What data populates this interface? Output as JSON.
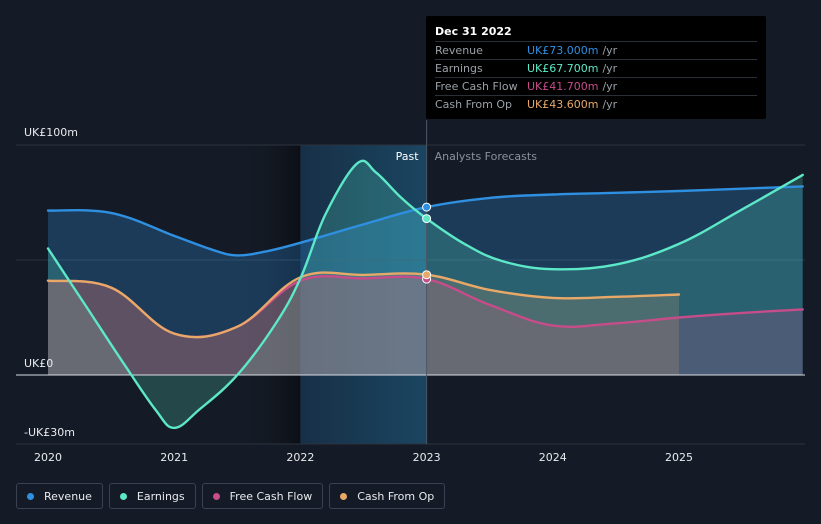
{
  "colors": {
    "revenue": "#2f8fe0",
    "earnings": "#5de8c8",
    "fcf": "#c64c8a",
    "cfo": "#e8a867"
  },
  "tooltip": {
    "date": "Dec 31 2022",
    "rows": [
      {
        "label": "Revenue",
        "value": "UK£73.000m",
        "unit": "/yr",
        "key": "revenue"
      },
      {
        "label": "Earnings",
        "value": "UK£67.700m",
        "unit": "/yr",
        "key": "earnings"
      },
      {
        "label": "Free Cash Flow",
        "value": "UK£41.700m",
        "unit": "/yr",
        "key": "fcf"
      },
      {
        "label": "Cash From Op",
        "value": "UK£43.600m",
        "unit": "/yr",
        "key": "cfo"
      }
    ]
  },
  "legend": [
    {
      "label": "Revenue",
      "key": "revenue"
    },
    {
      "label": "Earnings",
      "key": "earnings"
    },
    {
      "label": "Free Cash Flow",
      "key": "fcf"
    },
    {
      "label": "Cash From Op",
      "key": "cfo"
    }
  ],
  "chart_data": {
    "type": "line",
    "ylim": [
      -30,
      100
    ],
    "xlim": [
      2019.75,
      2025.98
    ],
    "y_tick_labels": [
      {
        "value": 100,
        "label": "UK£100m"
      },
      {
        "value": 0,
        "label": "UK£0"
      },
      {
        "value": -30,
        "label": "-UK£30m"
      }
    ],
    "x_ticks": [
      2020,
      2021,
      2022,
      2023,
      2024,
      2025
    ],
    "x_tick_labels": [
      "2020",
      "2021",
      "2022",
      "2023",
      "2024",
      "2025"
    ],
    "past_label": "Past",
    "forecast_label": "Analysts Forecasts",
    "divider_x": 2023.0,
    "highlight_start": 2022.0,
    "series": [
      {
        "name": "Revenue",
        "key": "revenue",
        "x": [
          2020.0,
          2020.5,
          2021.0,
          2021.3,
          2021.5,
          2021.75,
          2022.0,
          2022.5,
          2023.0,
          2023.5,
          2024.0,
          2024.5,
          2025.0,
          2025.5,
          2025.98
        ],
        "y": [
          71.5,
          70.5,
          60.5,
          54.5,
          52,
          54,
          57.5,
          65.5,
          73,
          77,
          78.5,
          79.2,
          80,
          81,
          82
        ]
      },
      {
        "name": "Earnings",
        "key": "earnings",
        "x": [
          2020.0,
          2020.3,
          2020.6,
          2020.85,
          2021.0,
          2021.2,
          2021.5,
          2021.8,
          2022.0,
          2022.2,
          2022.45,
          2022.6,
          2022.8,
          2023.0,
          2023.3,
          2023.6,
          2024.0,
          2024.5,
          2025.0,
          2025.5,
          2025.98
        ],
        "y": [
          55,
          30,
          5,
          -15,
          -23,
          -15,
          0,
          22,
          42,
          70,
          92,
          88,
          77,
          68,
          57,
          49.5,
          46,
          48,
          57,
          72,
          87
        ]
      },
      {
        "name": "Free Cash Flow",
        "key": "fcf",
        "x": [
          2020.0,
          2020.5,
          2021.0,
          2021.5,
          2022.0,
          2022.5,
          2023.0,
          2023.5,
          2024.0,
          2024.5,
          2025.0,
          2025.5,
          2025.98
        ],
        "y": [
          41,
          38,
          18,
          21,
          41,
          42,
          41.7,
          30.5,
          21.5,
          22.5,
          25,
          27,
          28.5
        ]
      },
      {
        "name": "Cash From Op",
        "key": "cfo",
        "x": [
          2020.0,
          2020.5,
          2021.0,
          2021.5,
          2022.0,
          2022.5,
          2023.0,
          2023.5,
          2024.0,
          2024.5,
          2025.0
        ],
        "y": [
          41,
          38,
          18,
          21,
          42.5,
          43.5,
          43.6,
          37,
          33.5,
          34,
          35
        ]
      }
    ]
  }
}
